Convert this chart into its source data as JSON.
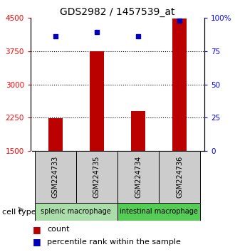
{
  "title": "GDS2982 / 1457539_at",
  "samples": [
    "GSM224733",
    "GSM224735",
    "GSM224734",
    "GSM224736"
  ],
  "counts": [
    2240,
    3750,
    2400,
    4480
  ],
  "percentiles": [
    86,
    89,
    86,
    98
  ],
  "ylim_left": [
    1500,
    4500
  ],
  "ylim_right": [
    0,
    100
  ],
  "yticks_left": [
    1500,
    2250,
    3000,
    3750,
    4500
  ],
  "yticks_right": [
    0,
    25,
    50,
    75,
    100
  ],
  "ytick_labels_left": [
    "1500",
    "2250",
    "3000",
    "3750",
    "4500"
  ],
  "ytick_labels_right": [
    "0",
    "25",
    "50",
    "75",
    "100%"
  ],
  "dotted_gridlines": [
    2250,
    3000,
    3750
  ],
  "bar_color": "#BB0000",
  "scatter_color": "#0000BB",
  "bar_width": 0.35,
  "cell_types": [
    {
      "label": "splenic macrophage",
      "samples": [
        0,
        1
      ],
      "color": "#AADDAA"
    },
    {
      "label": "intestinal macrophage",
      "samples": [
        2,
        3
      ],
      "color": "#55CC55"
    }
  ],
  "title_fontsize": 10,
  "tick_fontsize": 7.5,
  "sample_label_fontsize": 7,
  "legend_fontsize": 8,
  "cell_type_label": "cell type",
  "sample_bg_color": "#CCCCCC",
  "plot_bg": "#FFFFFF"
}
